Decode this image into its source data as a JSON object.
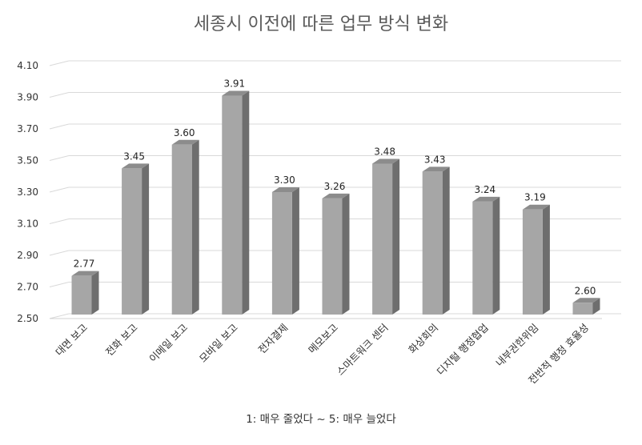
{
  "chart_data": {
    "type": "bar",
    "title": "세종시 이전에 따른 업무 방식 변화",
    "categories": [
      "대면 보고",
      "전화 보고",
      "이메일 보고",
      "모바일 보고",
      "전자결제",
      "메모보고",
      "스마트워크 센터",
      "화상회의",
      "디지털 행정협업",
      "내부권한위임",
      "전반적 행정 효율성"
    ],
    "values": [
      2.77,
      3.45,
      3.6,
      3.91,
      3.3,
      3.26,
      3.48,
      3.43,
      3.24,
      3.19,
      2.6
    ],
    "value_labels": [
      "2.77",
      "3.45",
      "3.60",
      "3.91",
      "3.30",
      "3.26",
      "3.48",
      "3.43",
      "3.24",
      "3.19",
      "2.60"
    ],
    "yticks": [
      "2.50",
      "2.70",
      "2.90",
      "3.10",
      "3.30",
      "3.50",
      "3.70",
      "3.90",
      "4.10"
    ],
    "ylim": [
      2.5,
      4.1
    ],
    "xlabel": "1: 매우 줄었다 ~ 5: 매우 늘었다",
    "ylabel": "",
    "grid": true,
    "style": "3d-column",
    "colors": {
      "bar_front": "#a6a6a6",
      "bar_side": "#6e6e6e",
      "bar_top": "#8c8c8c",
      "grid": "#d9d9d9",
      "floor": "#d0d0d0"
    }
  }
}
